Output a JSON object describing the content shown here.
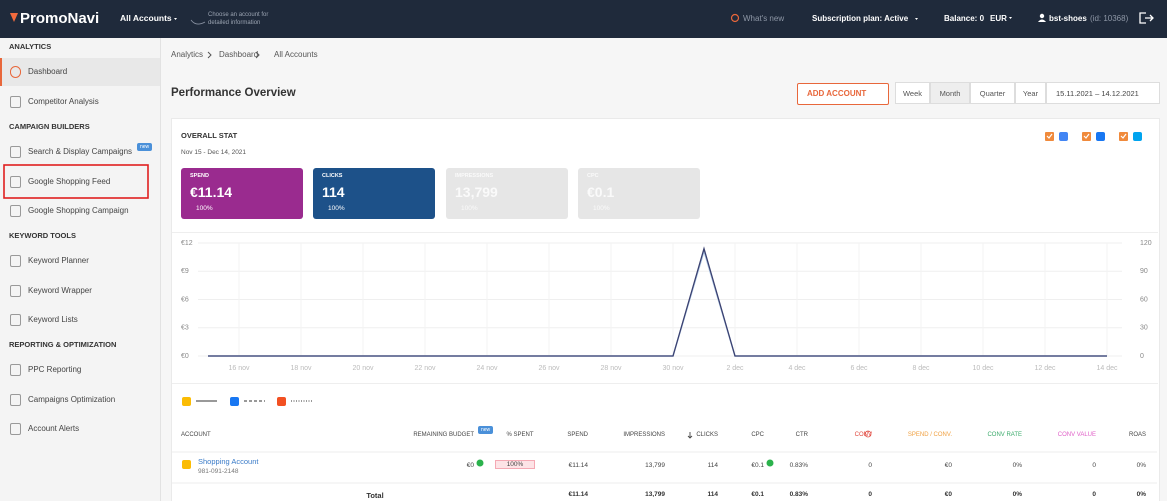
{
  "topbar": {
    "logo": "PromoNavi",
    "account_selector": "All Accounts",
    "account_hint": "Choose an account for detailed information",
    "whats_new": "What's new",
    "subscription": "Subscription plan: Active",
    "balance": "Balance: 0",
    "currency": "EUR",
    "user": "bst-shoes",
    "user_id": "(id: 10368)"
  },
  "sidebar": {
    "badge": "new",
    "sections": [
      {
        "title": "ANALYTICS",
        "items": [
          "Dashboard",
          "Competitor Analysis"
        ]
      },
      {
        "title": "CAMPAIGN BUILDERS",
        "items": [
          "Search & Display Campaigns",
          "Google Shopping Feed",
          "Google Shopping Campaign"
        ]
      },
      {
        "title": "KEYWORD TOOLS",
        "items": [
          "Keyword Planner",
          "Keyword Wrapper",
          "Keyword Lists"
        ]
      },
      {
        "title": "REPORTING & OPTIMIZATION",
        "items": [
          "PPC Reporting",
          "Campaigns Optimization",
          "Account Alerts"
        ]
      }
    ]
  },
  "breadcrumb": [
    "Analytics",
    "Dashboard",
    "All Accounts"
  ],
  "page_title": "Performance Overview",
  "add_account": "ADD ACCOUNT",
  "periods": [
    "Week",
    "Month",
    "Quarter",
    "Year"
  ],
  "date_range": "15.11.2021 – 14.12.2021",
  "stat": {
    "title": "OVERALL STAT",
    "subtitle": "Nov 15 - Dec 14, 2021",
    "tiles": [
      {
        "label": "SPEND",
        "value": "€11.14",
        "change": "100%"
      },
      {
        "label": "CLICKS",
        "value": "114",
        "change": "100%"
      },
      {
        "label": "IMPRESSIONS",
        "value": "13,799",
        "change": "100%"
      },
      {
        "label": "CPC",
        "value": "€0.1",
        "change": "100%"
      }
    ]
  },
  "chart_data": {
    "type": "line",
    "categories": [
      null,
      "16 nov",
      null,
      "18 nov",
      null,
      "20 nov",
      null,
      "22 nov",
      null,
      "24 nov",
      null,
      "26 nov",
      null,
      "28 nov",
      null,
      "30 nov",
      null,
      "2 dec",
      null,
      "4 dec",
      null,
      "6 dec",
      null,
      "8 dec",
      null,
      "10 dec",
      null,
      "12 dec",
      null,
      "14 dec"
    ],
    "series": [
      {
        "color": "#a9c3e3",
        "values": [
          0,
          0,
          0,
          0,
          0,
          0,
          0,
          0,
          0,
          0,
          0,
          0,
          0,
          0,
          0,
          0,
          11.14,
          0,
          0,
          0,
          0,
          0,
          0,
          0,
          0,
          0,
          0,
          0,
          0,
          0
        ]
      },
      {
        "color": "#3b4170",
        "axis": "y2",
        "values": [
          0,
          0,
          0,
          0,
          0,
          0,
          0,
          0,
          0,
          0,
          0,
          0,
          0,
          0,
          0,
          0,
          114,
          0,
          0,
          0,
          0,
          0,
          0,
          0,
          0,
          0,
          0,
          0,
          0,
          0
        ]
      }
    ],
    "ylim": [
      0,
      12
    ],
    "yticks": [
      {
        "value": 0,
        "label": "€0"
      },
      {
        "value": 3,
        "label": "€3"
      },
      {
        "value": 6,
        "label": "€6"
      },
      {
        "value": 9,
        "label": "€9"
      },
      {
        "value": 12,
        "label": "€12"
      }
    ],
    "y2lim": [
      0,
      120
    ],
    "y2ticks": [
      0,
      30,
      60,
      90,
      120
    ],
    "grid": true
  },
  "table": {
    "badge": "new",
    "headers": [
      "ACCOUNT",
      "REMAINING BUDGET",
      "% SPENT",
      "SPEND",
      "IMPRESSIONS",
      "CLICKS",
      "CPC",
      "CTR",
      "CONV",
      "SPEND / CONV.",
      "CONV RATE",
      "CONV VALUE",
      "ROAS"
    ],
    "rows": [
      {
        "account": "Shopping Account",
        "account_id": "981-091-2148",
        "cells": [
          "€0",
          "100%",
          "€11.14",
          "13,799",
          "114",
          "€0.1",
          "0.83%",
          "0",
          "€0",
          "0%",
          "0",
          "0%"
        ]
      }
    ],
    "total": {
      "label": "Total",
      "cells": [
        "€11.14",
        "13,799",
        "114",
        "€0.1",
        "0.83%",
        "0",
        "€0",
        "0%",
        "0",
        "0%"
      ]
    }
  }
}
